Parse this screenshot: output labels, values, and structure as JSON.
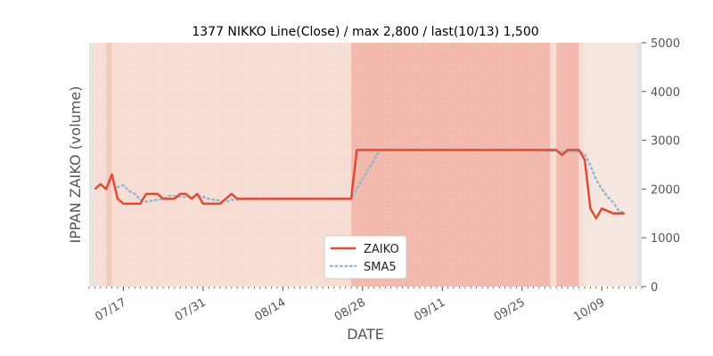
{
  "chart_data": {
    "type": "line",
    "title": "1377 NIKKO Line(Close) / max 2,800 / last(10/13) 1,500",
    "xlabel": "DATE",
    "ylabel": "IPPAN ZAIKO (volume)",
    "ylim": [
      0,
      5000
    ],
    "yticks": [
      0,
      1000,
      2000,
      3000,
      4000,
      5000
    ],
    "ytick_labels": [
      "0",
      "1000",
      "2000",
      "3000",
      "4000",
      "5000"
    ],
    "y_axis_side": "right",
    "xlim": [
      "2023-07-11",
      "2023-10-16"
    ],
    "xticks": [
      "2023-07-17",
      "2023-07-31",
      "2023-08-14",
      "2023-08-28",
      "2023-09-11",
      "2023-09-25",
      "2023-10-09"
    ],
    "xtick_labels": [
      "07/17",
      "07/31",
      "08/14",
      "08/28",
      "09/11",
      "09/25",
      "10/09"
    ],
    "grid": false,
    "legend_placement": "bottom-center",
    "series": [
      {
        "name": "ZAIKO",
        "color": "#e24a33",
        "style": "solid",
        "x": [
          "2023-07-12",
          "2023-07-13",
          "2023-07-14",
          "2023-07-15",
          "2023-07-16",
          "2023-07-17",
          "2023-07-18",
          "2023-07-19",
          "2023-07-20",
          "2023-07-21",
          "2023-07-22",
          "2023-07-23",
          "2023-07-24",
          "2023-07-25",
          "2023-07-26",
          "2023-07-27",
          "2023-07-28",
          "2023-07-29",
          "2023-07-30",
          "2023-07-31",
          "2023-08-01",
          "2023-08-02",
          "2023-08-03",
          "2023-08-04",
          "2023-08-05",
          "2023-08-06",
          "2023-08-07",
          "2023-08-08",
          "2023-08-09",
          "2023-08-26",
          "2023-08-27",
          "2023-08-28",
          "2023-09-25",
          "2023-09-26",
          "2023-09-27",
          "2023-10-01",
          "2023-10-02",
          "2023-10-03",
          "2023-10-04",
          "2023-10-05",
          "2023-10-06",
          "2023-10-07",
          "2023-10-08",
          "2023-10-09",
          "2023-10-10",
          "2023-10-11",
          "2023-10-12",
          "2023-10-13"
        ],
        "values": [
          2000,
          2100,
          2000,
          2300,
          1800,
          1700,
          1700,
          1700,
          1700,
          1900,
          1900,
          1900,
          1800,
          1800,
          1800,
          1900,
          1900,
          1800,
          1900,
          1700,
          1700,
          1700,
          1700,
          1800,
          1900,
          1800,
          1800,
          1800,
          1800,
          1800,
          2800,
          2800,
          2800,
          2800,
          2800,
          2800,
          2700,
          2800,
          2800,
          2800,
          2600,
          1600,
          1400,
          1600,
          1550,
          1500,
          1500,
          1500
        ]
      },
      {
        "name": "SMA5",
        "color": "#8eb8d0",
        "style": "dotted",
        "x": [
          "2023-07-16",
          "2023-07-17",
          "2023-07-18",
          "2023-07-19",
          "2023-07-20",
          "2023-07-21",
          "2023-07-22",
          "2023-07-23",
          "2023-07-24",
          "2023-07-25",
          "2023-07-26",
          "2023-07-27",
          "2023-07-28",
          "2023-07-29",
          "2023-07-30",
          "2023-07-31",
          "2023-08-01",
          "2023-08-02",
          "2023-08-03",
          "2023-08-04",
          "2023-08-05",
          "2023-08-06",
          "2023-08-07",
          "2023-08-08",
          "2023-08-09",
          "2023-08-26",
          "2023-08-27",
          "2023-08-28",
          "2023-08-29",
          "2023-08-30",
          "2023-08-31",
          "2023-09-25",
          "2023-10-05",
          "2023-10-06",
          "2023-10-07",
          "2023-10-08",
          "2023-10-09",
          "2023-10-10",
          "2023-10-11",
          "2023-10-12",
          "2023-10-13"
        ],
        "values": [
          2040,
          2080,
          1960,
          1900,
          1780,
          1740,
          1760,
          1780,
          1800,
          1860,
          1860,
          1840,
          1840,
          1840,
          1860,
          1840,
          1800,
          1780,
          1760,
          1740,
          1780,
          1780,
          1800,
          1800,
          1800,
          1800,
          2000,
          2200,
          2400,
          2600,
          2800,
          2800,
          2760,
          2720,
          2480,
          2200,
          2000,
          1840,
          1730,
          1550,
          1500
        ]
      }
    ],
    "background_bands": [
      {
        "start": "2023-07-11",
        "end": "2023-07-12",
        "color": "#e6e3e0"
      },
      {
        "start": "2023-07-12",
        "end": "2023-07-14",
        "color": "#f7ddd4"
      },
      {
        "start": "2023-07-14",
        "end": "2023-07-15",
        "color": "#f4c9bd"
      },
      {
        "start": "2023-07-15",
        "end": "2023-08-26",
        "color": "#f7ddd4"
      },
      {
        "start": "2023-08-26",
        "end": "2023-09-30",
        "color": "#f3b9ad"
      },
      {
        "start": "2023-09-30",
        "end": "2023-10-01",
        "color": "#f7ddd4"
      },
      {
        "start": "2023-10-01",
        "end": "2023-10-05",
        "color": "#f3b9ad"
      },
      {
        "start": "2023-10-05",
        "end": "2023-10-06",
        "color": "#f7ddd4"
      },
      {
        "start": "2023-10-06",
        "end": "2023-10-15",
        "color": "#f5e6df"
      },
      {
        "start": "2023-10-15",
        "end": "2023-10-16",
        "color": "#e6e3e0"
      }
    ]
  }
}
